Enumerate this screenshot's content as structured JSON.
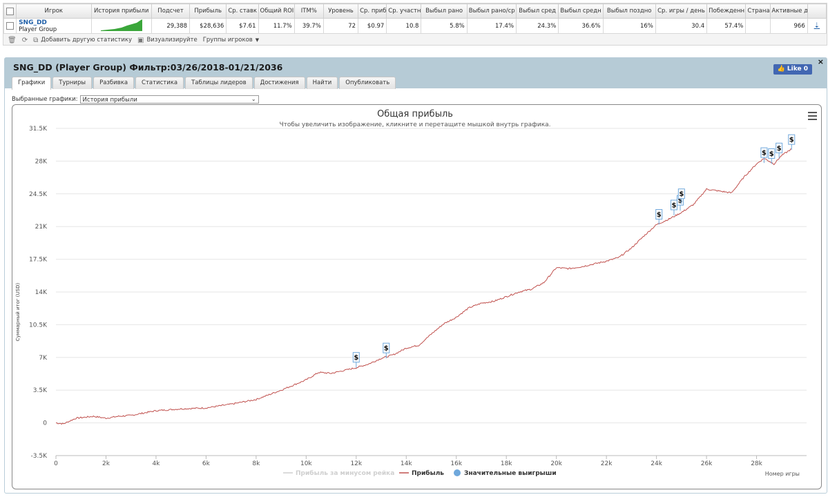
{
  "stats": {
    "headers": [
      "Игрок",
      "История прибыли",
      "Подсчет",
      "Прибыль",
      "Ср. ставк",
      "Общий ROI",
      "ITM%",
      "Уровень",
      "Ср. приб",
      "Ср. участн",
      "Выбыл рано",
      "Выбыл рано/ср",
      "Выбыл сред",
      "Выбыл средн",
      "Выбыл поздно",
      "Ср. игры / день",
      "Побежденн",
      "Страна",
      "Активные д"
    ],
    "row": {
      "player": "SNG_DD",
      "group": "Player Group",
      "values": [
        "29,388",
        "$28,636",
        "$7.61",
        "11.7%",
        "39.7%",
        "72",
        "$0.97",
        "10.8",
        "5.8%",
        "17.4%",
        "24.3%",
        "36.6%",
        "16%",
        "30.4",
        "57.4%",
        "",
        "966"
      ],
      "download_icon": "download-arrow"
    },
    "toolbar": {
      "add_stat": "Добавить другую статистику",
      "visualize": "Визуализируйте",
      "player_groups": "Группы игроков"
    }
  },
  "panel": {
    "title": "SNG_DD (Player Group) Фильтр:03/26/2018-01/21/2036",
    "like_label": "Like 0",
    "close_label": "×",
    "tabs": [
      "Графики",
      "Турниры",
      "Разбивка",
      "Статистика",
      "Таблицы лидеров",
      "Достижения",
      "Найти",
      "Опубликовать"
    ],
    "active_tab": 0,
    "selected_chart_label": "Выбранные графики:",
    "selected_chart_value": "История прибыли"
  },
  "chart_data": {
    "type": "line",
    "title": "Общая прибыль",
    "subtitle": "Чтобы увеличить изображение, кликните и перетащите мышкой внутрь графика.",
    "xlabel": "Номер игры",
    "ylabel": "Суммарный итог (USD)",
    "xlim": [
      0,
      30000
    ],
    "ylim": [
      -3500,
      31500
    ],
    "x_ticks": [
      0,
      2000,
      4000,
      6000,
      8000,
      10000,
      12000,
      14000,
      16000,
      18000,
      20000,
      22000,
      24000,
      26000,
      28000
    ],
    "x_tick_labels": [
      "0",
      "2k",
      "4k",
      "6k",
      "8k",
      "10k",
      "12k",
      "14k",
      "16k",
      "18k",
      "20k",
      "22k",
      "24k",
      "26k",
      "28k"
    ],
    "y_ticks": [
      -3500,
      0,
      3500,
      7000,
      10500,
      14000,
      17500,
      21000,
      24500,
      28000,
      31500
    ],
    "y_tick_labels": [
      "-3.5K",
      "0",
      "3.5K",
      "7K",
      "10.5K",
      "14K",
      "17.5K",
      "21K",
      "24.5K",
      "28K",
      "31.5K"
    ],
    "grid": true,
    "legend": [
      "Прибыль за минусом рейка",
      "Прибыль",
      "Значительные выигрыши"
    ],
    "legend_placement": "bottom",
    "series": [
      {
        "name": "Прибыль",
        "color": "#c0504d",
        "x": [
          0,
          300,
          800,
          1500,
          2000,
          2500,
          3000,
          4000,
          5000,
          6000,
          7000,
          8000,
          9000,
          10000,
          10500,
          11000,
          12000,
          12500,
          13000,
          13500,
          14000,
          14500,
          15000,
          15500,
          16000,
          16500,
          17000,
          17500,
          18000,
          18500,
          19000,
          19500,
          20000,
          20500,
          21000,
          21500,
          22000,
          22500,
          23000,
          23500,
          24000,
          24500,
          25000,
          25500,
          26000,
          26500,
          27000,
          27500,
          28000,
          28300,
          28700,
          29000,
          29400
        ],
        "y": [
          0,
          -100,
          500,
          700,
          500,
          700,
          800,
          1300,
          1500,
          1600,
          2000,
          2500,
          3500,
          4600,
          5400,
          5300,
          5900,
          6300,
          6900,
          7300,
          8000,
          8300,
          9500,
          10600,
          11300,
          12300,
          12800,
          13000,
          13500,
          14000,
          14300,
          15000,
          16600,
          16500,
          16700,
          17000,
          17300,
          17700,
          18700,
          20000,
          21200,
          21800,
          22500,
          23400,
          25000,
          24800,
          24600,
          26300,
          27700,
          28300,
          27700,
          28600,
          29300
        ]
      }
    ],
    "big_wins": {
      "x": [
        12000,
        13200,
        24100,
        24700,
        24950,
        25000,
        28300,
        28600,
        28900,
        29400
      ],
      "y": [
        5900,
        6900,
        21200,
        22200,
        22700,
        23400,
        27800,
        27700,
        28300,
        29200
      ]
    }
  }
}
